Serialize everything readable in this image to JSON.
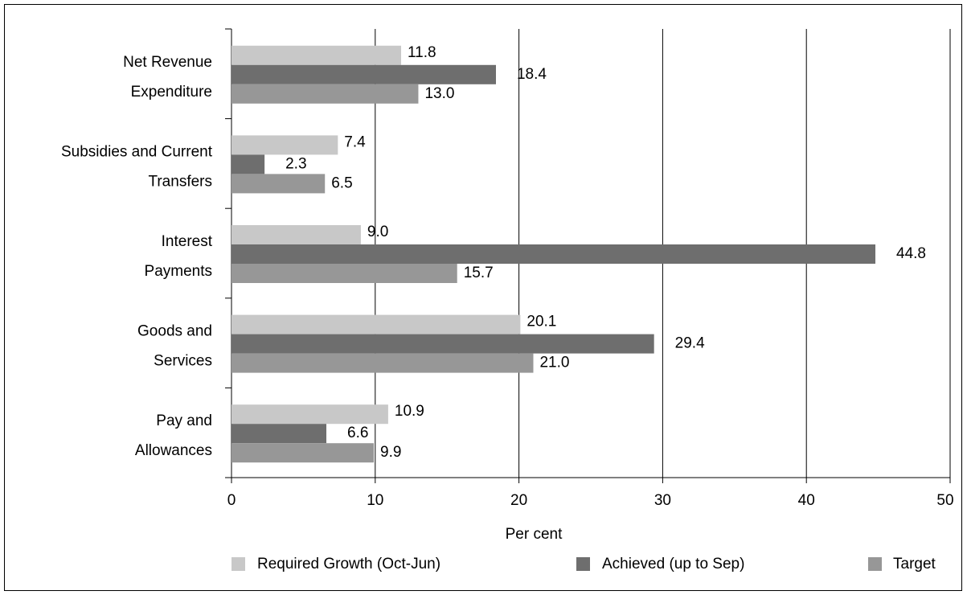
{
  "chart_data": {
    "type": "bar",
    "orientation": "horizontal",
    "categories": [
      [
        "Net Revenue",
        "Expenditure"
      ],
      [
        "Subsidies and Current",
        "Transfers"
      ],
      [
        "Interest",
        "Payments"
      ],
      [
        "Goods and",
        "Services"
      ],
      [
        "Pay and",
        "Allowances"
      ]
    ],
    "series": [
      {
        "name": "Required Growth (Oct-Jun)",
        "color": "#c8c8c8",
        "values": [
          11.8,
          7.4,
          9.0,
          20.1,
          10.9
        ],
        "labels": [
          "11.8",
          "7.4",
          "9.0",
          "20.1",
          "10.9"
        ]
      },
      {
        "name": "Achieved (up to Sep)",
        "color": "#6e6e6e",
        "values": [
          18.4,
          2.3,
          44.8,
          29.4,
          6.6
        ],
        "labels": [
          "18.4",
          "2.3",
          "44.8",
          "29.4",
          "6.6"
        ]
      },
      {
        "name": "Target",
        "color": "#979797",
        "values": [
          13.0,
          6.5,
          15.7,
          21.0,
          9.9
        ],
        "labels": [
          "13.0",
          "6.5",
          "15.7",
          "21.0",
          "9.9"
        ]
      }
    ],
    "xlabel": "Per cent",
    "xlim": [
      0,
      50
    ],
    "xticks": [
      0,
      10,
      20,
      30,
      40,
      50
    ],
    "grid": "vertical",
    "legend": "bottom"
  }
}
